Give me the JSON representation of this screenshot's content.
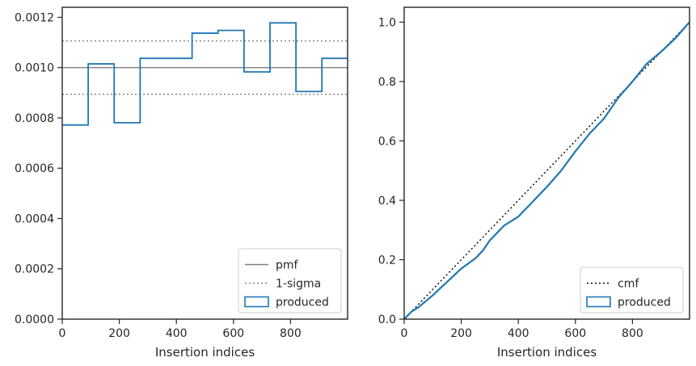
{
  "chart_data": [
    {
      "type": "step",
      "xlabel": "Insertion indices",
      "xlim": [
        0,
        1000
      ],
      "ylim": [
        0,
        0.00124
      ],
      "xticks": [
        "0",
        "200",
        "400",
        "600",
        "800"
      ],
      "yticks": [
        "0.0000",
        "0.0002",
        "0.0004",
        "0.0006",
        "0.0008",
        "0.0010",
        "0.0012"
      ],
      "grid": false,
      "legend_position": "lower-right",
      "reference_lines": [
        {
          "name": "pmf",
          "style": "solid",
          "color": "#808080",
          "y": 0.001
        },
        {
          "name": "1-sigma",
          "style": "dotted",
          "color": "#808080",
          "y": [
            0.000894,
            0.001106
          ]
        }
      ],
      "series": [
        {
          "name": "produced",
          "color": "#1f77b4",
          "bin_edges": [
            0,
            91,
            182,
            273,
            364,
            455,
            546,
            637,
            728,
            819,
            910,
            1000
          ],
          "values": [
            0.000772,
            0.001015,
            0.000781,
            0.001037,
            0.001037,
            0.001137,
            0.001148,
            0.000983,
            0.001178,
            0.000905,
            0.001037
          ]
        }
      ]
    },
    {
      "type": "line",
      "xlabel": "Insertion indices",
      "xlim": [
        0,
        1000
      ],
      "ylim": [
        0,
        1.05
      ],
      "xticks": [
        "0",
        "200",
        "400",
        "600",
        "800"
      ],
      "yticks": [
        "0.0",
        "0.2",
        "0.4",
        "0.6",
        "0.8",
        "1.0"
      ],
      "grid": false,
      "legend_position": "lower-right",
      "series": [
        {
          "name": "cmf",
          "style": "dotted",
          "color": "#000000",
          "x": [
            0,
            1000
          ],
          "y": [
            0,
            1.0
          ]
        },
        {
          "name": "produced",
          "color": "#1f77b4",
          "x": [
            0,
            25,
            50,
            75,
            100,
            150,
            200,
            250,
            275,
            300,
            350,
            400,
            450,
            500,
            550,
            600,
            650,
            700,
            750,
            800,
            850,
            900,
            950,
            1000
          ],
          "y": [
            0,
            0.025,
            0.04,
            0.06,
            0.08,
            0.125,
            0.17,
            0.205,
            0.23,
            0.265,
            0.315,
            0.345,
            0.395,
            0.445,
            0.5,
            0.565,
            0.625,
            0.675,
            0.745,
            0.8,
            0.86,
            0.9,
            0.945,
            1.0
          ]
        }
      ]
    }
  ]
}
